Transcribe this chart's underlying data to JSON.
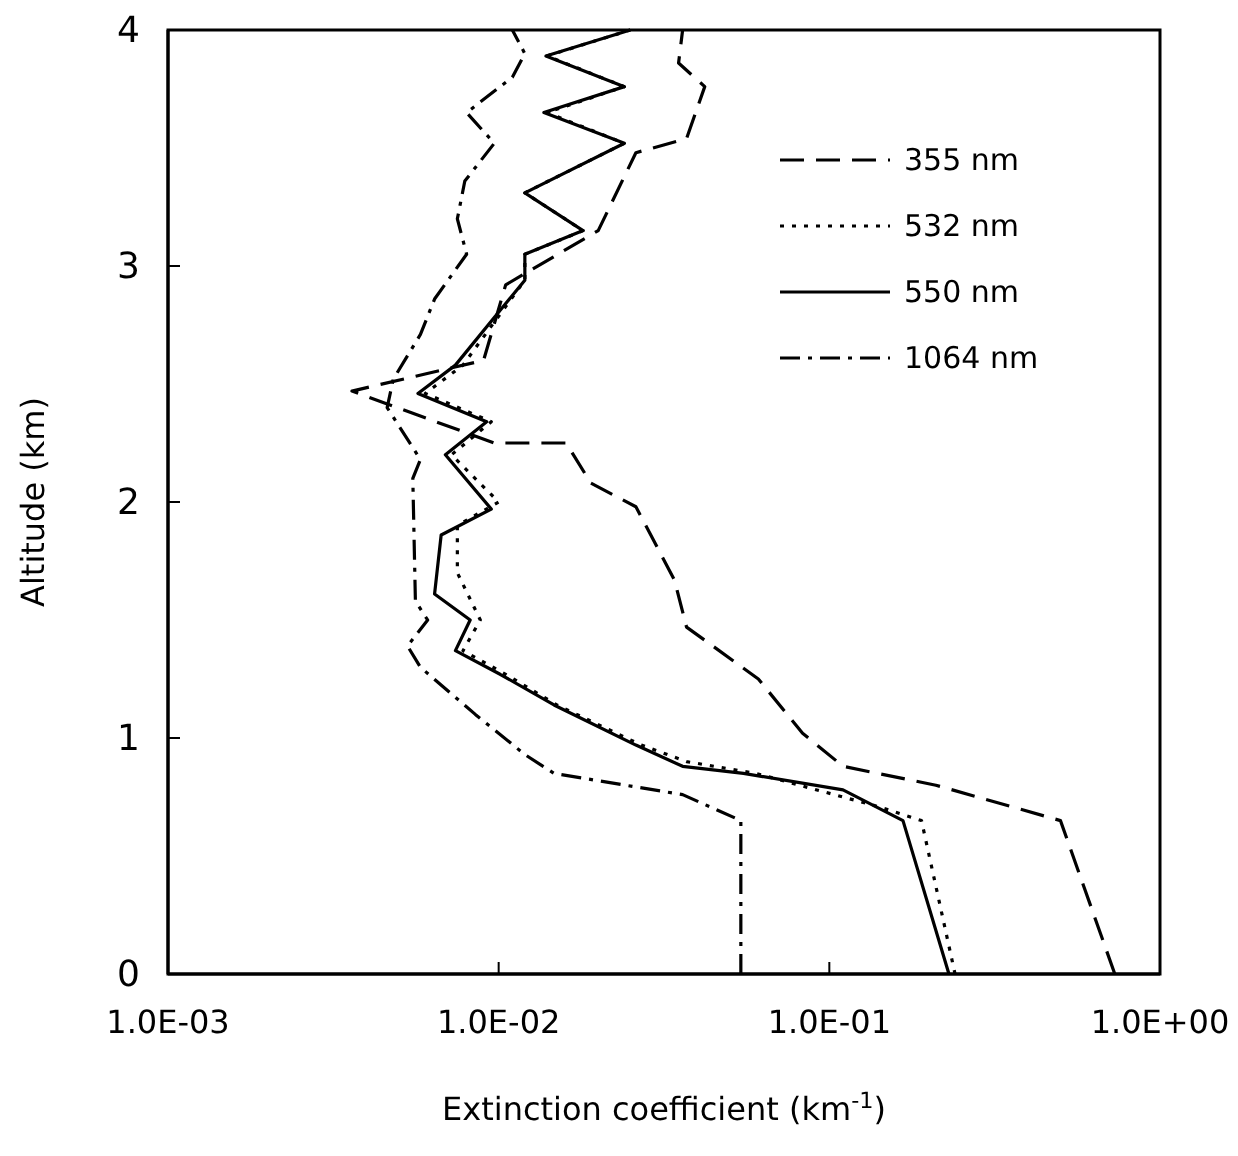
{
  "chart_data": {
    "type": "line",
    "xlabel": "Extinction coefficient (km$^{-1}$)",
    "ylabel": "Altitude (km)",
    "log": "x",
    "xlim": [
      0.001,
      1
    ],
    "xticks": [
      {
        "value": 0.001,
        "label": "1.0E-03"
      },
      {
        "value": 0.01,
        "label": "1.0E-02"
      },
      {
        "value": 0.1,
        "label": "1.0E-01"
      },
      {
        "value": 1,
        "label": "1.0E+00"
      }
    ],
    "ylim": [
      0,
      4
    ],
    "yticks": [
      0,
      1,
      2,
      3,
      4
    ],
    "grid": false,
    "legend": "top right",
    "marker": "none",
    "series": [
      {
        "name": "355 nm",
        "color": "#000000",
        "line_style": "dashed",
        "x": [
          0.73,
          0.5,
          0.21,
          0.11,
          0.083,
          0.061,
          0.037,
          0.034,
          0.026,
          0.019,
          0.016,
          0.0097,
          0.0036,
          0.009,
          0.0105,
          0.02,
          0.026,
          0.037,
          0.042,
          0.035,
          0.036
        ],
        "values": [
          0,
          0.65,
          0.8,
          0.88,
          1.02,
          1.25,
          1.47,
          1.67,
          1.98,
          2.08,
          2.25,
          2.25,
          2.47,
          2.6,
          2.92,
          3.15,
          3.48,
          3.54,
          3.76,
          3.86,
          4
        ]
      },
      {
        "name": "532 nm",
        "color": "#000000",
        "line_style": "dotted",
        "x": [
          0.24,
          0.19,
          0.14,
          0.06,
          0.037,
          0.027,
          0.015,
          0.0105,
          0.0078,
          0.0088,
          0.0075,
          0.0075,
          0.01,
          0.0072,
          0.0095,
          0.006,
          0.0078,
          0.012,
          0.012,
          0.018,
          0.012,
          0.024,
          0.014,
          0.024,
          0.014,
          0.025
        ],
        "values": [
          0,
          0.65,
          0.71,
          0.85,
          0.9,
          0.97,
          1.14,
          1.27,
          1.37,
          1.5,
          1.7,
          1.9,
          2.0,
          2.2,
          2.34,
          2.46,
          2.58,
          2.94,
          3.05,
          3.15,
          3.31,
          3.52,
          3.65,
          3.76,
          3.89,
          4
        ]
      },
      {
        "name": "550 nm",
        "color": "#000000",
        "line_style": "solid",
        "x": [
          0.23,
          0.167,
          0.11,
          0.055,
          0.036,
          0.026,
          0.0147,
          0.0101,
          0.0074,
          0.0082,
          0.0064,
          0.0067,
          0.0095,
          0.0069,
          0.0092,
          0.0057,
          0.0074,
          0.012,
          0.012,
          0.018,
          0.012,
          0.024,
          0.0137,
          0.024,
          0.0139,
          0.025
        ],
        "values": [
          0,
          0.65,
          0.78,
          0.85,
          0.88,
          0.97,
          1.14,
          1.27,
          1.37,
          1.5,
          1.61,
          1.86,
          1.97,
          2.2,
          2.34,
          2.46,
          2.58,
          2.94,
          3.05,
          3.15,
          3.31,
          3.52,
          3.65,
          3.76,
          3.89,
          4
        ]
      },
      {
        "name": "1064 nm",
        "color": "#000000",
        "line_style": "dashdot",
        "x": [
          0.054,
          0.054,
          0.036,
          0.0147,
          0.012,
          0.0085,
          0.0058,
          0.0053,
          0.0061,
          0.0056,
          0.0055,
          0.0058,
          0.0046,
          0.0048,
          0.0058,
          0.0064,
          0.008,
          0.0075,
          0.0079,
          0.0097,
          0.008,
          0.011,
          0.012,
          0.011
        ],
        "values": [
          0,
          0.65,
          0.76,
          0.85,
          0.93,
          1.1,
          1.3,
          1.39,
          1.5,
          1.58,
          2.1,
          2.18,
          2.4,
          2.52,
          2.71,
          2.86,
          3.05,
          3.2,
          3.36,
          3.52,
          3.65,
          3.8,
          3.9,
          4
        ]
      }
    ]
  }
}
